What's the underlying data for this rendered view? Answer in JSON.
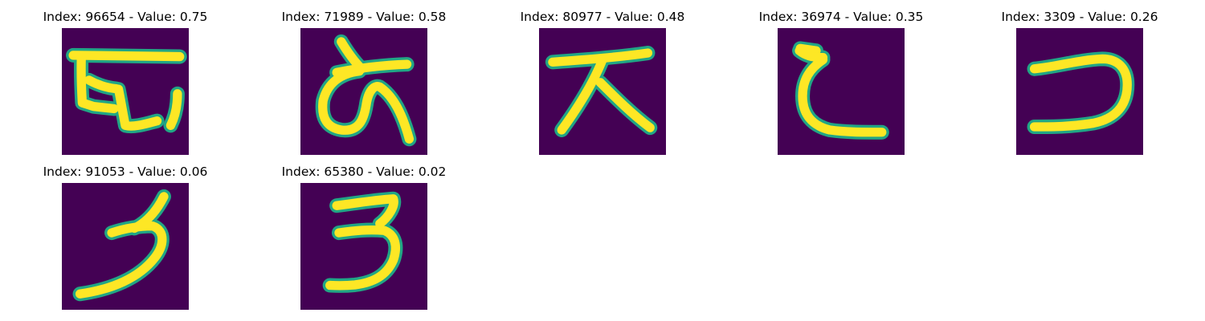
{
  "colors": {
    "background": "#440154",
    "stroke_edge": "#21a685",
    "stroke_core": "#fde725"
  },
  "grid": {
    "columns": 5,
    "rows": 2
  },
  "samples": [
    {
      "title": "Index: 96654 - Value: 0.75",
      "index": 96654,
      "value": 0.75,
      "glyph": "glyph-ha-icon"
    },
    {
      "title": "Index: 71989 - Value: 0.58",
      "index": 71989,
      "value": 0.58,
      "glyph": "glyph-a-icon"
    },
    {
      "title": "Index: 80977 - Value: 0.48",
      "index": 80977,
      "value": 0.48,
      "glyph": "glyph-ta-icon"
    },
    {
      "title": "Index: 36974 - Value: 0.35",
      "index": 36974,
      "value": 0.35,
      "glyph": "glyph-te-icon"
    },
    {
      "title": "Index: 3309 - Value: 0.26",
      "index": 3309,
      "value": 0.26,
      "glyph": "glyph-tsu-icon"
    },
    {
      "title": "Index: 91053 - Value: 0.06",
      "index": 91053,
      "value": 0.06,
      "glyph": "glyph-ra-icon"
    },
    {
      "title": "Index: 65380 - Value: 0.02",
      "index": 65380,
      "value": 0.02,
      "glyph": "glyph-ru-icon"
    }
  ]
}
